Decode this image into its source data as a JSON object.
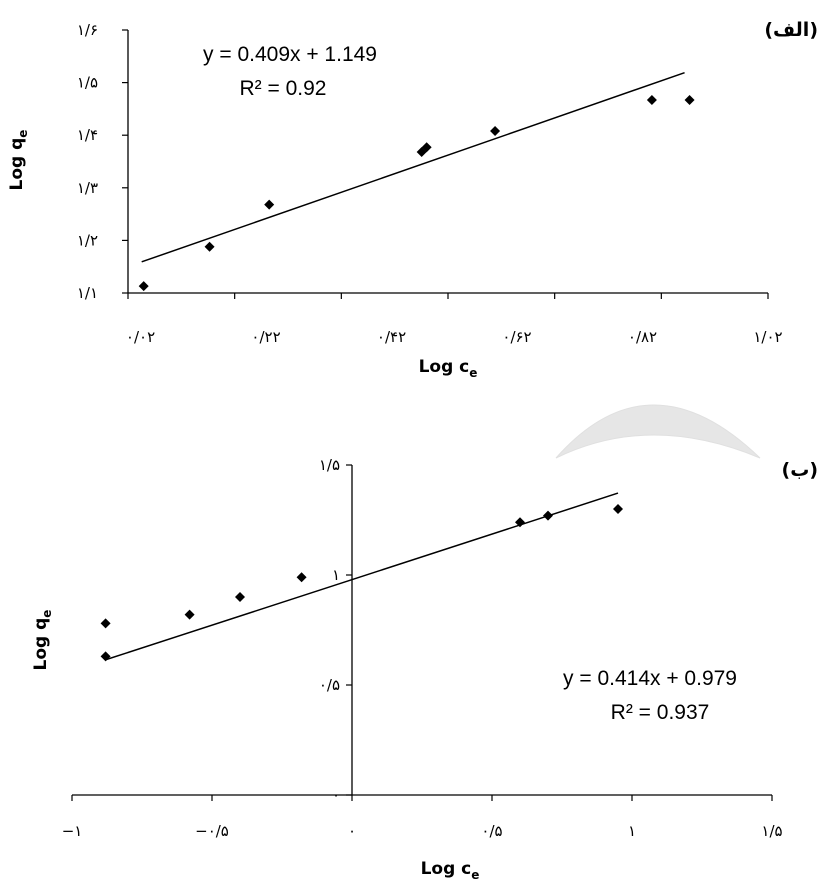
{
  "chart_data": [
    {
      "type": "scatter",
      "panel_label": "(الف)",
      "xlabel": "Log c",
      "xlabel_sub": "e",
      "ylabel": "Log q",
      "ylabel_sub": "e",
      "xlim": [
        0,
        1.02
      ],
      "ylim": [
        1.1,
        1.6
      ],
      "x_ticks": [
        0.02,
        0.22,
        0.42,
        0.62,
        0.82,
        1.02
      ],
      "x_tick_labels": [
        "۰/۰۲",
        "۰/۲۲",
        "۰/۴۲",
        "۰/۶۲",
        "۰/۸۲",
        "۱/۰۲"
      ],
      "y_ticks": [
        1.1,
        1.2,
        1.3,
        1.4,
        1.5,
        1.6
      ],
      "y_tick_labels": [
        "۱/۱",
        "۱/۲",
        "۱/۳",
        "۱/۴",
        "۱/۵",
        "۱/۶"
      ],
      "points": [
        {
          "x": 0.025,
          "y": 1.113
        },
        {
          "x": 0.13,
          "y": 1.188
        },
        {
          "x": 0.225,
          "y": 1.268
        },
        {
          "x": 0.468,
          "y": 1.368
        },
        {
          "x": 0.476,
          "y": 1.377
        },
        {
          "x": 0.585,
          "y": 1.408
        },
        {
          "x": 0.835,
          "y": 1.467
        },
        {
          "x": 0.895,
          "y": 1.467
        }
      ],
      "trendline": {
        "x": [
          0.025,
          0.895
        ],
        "slope": 0.409,
        "intercept": 1.149
      },
      "equation": "y = 0.409x + 1.149",
      "r2": "R² = 0.92"
    },
    {
      "type": "scatter",
      "panel_label": "(ب)",
      "xlabel": "Log c",
      "xlabel_sub": "e",
      "ylabel": "Log  q",
      "ylabel_sub": "e",
      "xlim": [
        -1,
        1.5
      ],
      "ylim": [
        0,
        1.5
      ],
      "x_ticks": [
        -1,
        -0.5,
        0,
        0.5,
        1,
        1.5
      ],
      "x_tick_labels": [
        "−۱",
        "−۰/۵",
        "۰",
        "۰/۵",
        "۱",
        "۱/۵"
      ],
      "y_ticks": [
        0,
        0.5,
        1,
        1.5
      ],
      "y_tick_labels": [
        "۰",
        "۰/۵",
        "۱",
        "۱/۵"
      ],
      "points": [
        {
          "x": -0.88,
          "y": 0.78
        },
        {
          "x": -0.88,
          "y": 0.63
        },
        {
          "x": -0.58,
          "y": 0.82
        },
        {
          "x": -0.4,
          "y": 0.9
        },
        {
          "x": -0.18,
          "y": 0.99
        },
        {
          "x": 0.6,
          "y": 1.24
        },
        {
          "x": 0.7,
          "y": 1.27
        },
        {
          "x": 0.95,
          "y": 1.3
        }
      ],
      "trendline": {
        "x": [
          -0.88,
          0.95
        ],
        "slope": 0.414,
        "intercept": 0.979
      },
      "equation": "y = 0.414x + 0.979",
      "r2": "R² = 0.937"
    }
  ]
}
